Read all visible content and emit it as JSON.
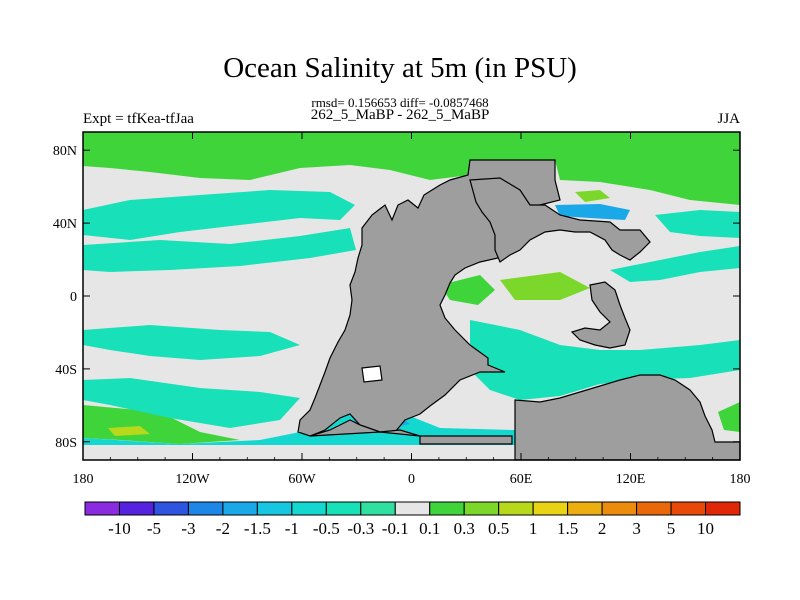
{
  "chart_data": {
    "type": "heatmap",
    "title": "Ocean Salinity at 5m (in PSU)",
    "stats_line": "rmsd= 0.156653 diff= -0.0857468",
    "subtitle": "262_5_MaBP - 262_5_MaBP",
    "left_label": "Expt = tfKea-tfJaa",
    "right_label": "JJA",
    "x_ticks": [
      "180",
      "120W",
      "60W",
      "0",
      "60E",
      "120E",
      "180"
    ],
    "y_ticks": [
      "80N",
      "40N",
      "0",
      "40S",
      "80S"
    ],
    "xlim": [
      -180,
      180
    ],
    "ylim": [
      -90,
      90
    ],
    "colorbar": {
      "labels": [
        "-10",
        "-5",
        "-3",
        "-2",
        "-1.5",
        "-1",
        "-0.5",
        "-0.3",
        "-0.1",
        "0.1",
        "0.3",
        "0.5",
        "1",
        "1.5",
        "2",
        "3",
        "5",
        "10"
      ],
      "colors": [
        "#8a2be2",
        "#5522e0",
        "#2e55e0",
        "#1e86e6",
        "#1aa8e8",
        "#17c6e0",
        "#14d8d0",
        "#18e0b8",
        "#2fe0a0",
        "#e6e6e6",
        "#3ed43a",
        "#7bd82a",
        "#b8d81c",
        "#e8d414",
        "#ecae10",
        "#ec8c0c",
        "#e8680a",
        "#e84808",
        "#e02808"
      ]
    },
    "land_color": "#9e9e9e"
  }
}
